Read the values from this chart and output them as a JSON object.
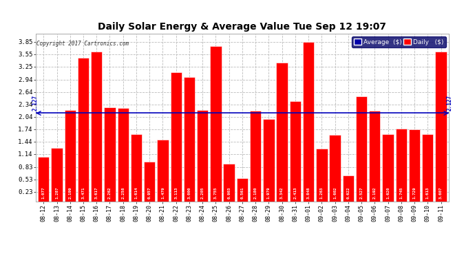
{
  "title": "Daily Solar Energy & Average Value Tue Sep 12 19:07",
  "copyright": "Copyright 2017 Cartronics.com",
  "average_value": 2.127,
  "average_label": "2.127",
  "categories": [
    "08-12",
    "08-13",
    "08-14",
    "08-15",
    "08-16",
    "08-17",
    "08-18",
    "08-19",
    "08-20",
    "08-21",
    "08-22",
    "08-23",
    "08-24",
    "08-25",
    "08-26",
    "08-27",
    "08-28",
    "08-29",
    "08-30",
    "08-31",
    "09-01",
    "09-02",
    "09-03",
    "09-04",
    "09-05",
    "09-06",
    "09-07",
    "09-08",
    "09-09",
    "09-10",
    "09-11"
  ],
  "values": [
    1.077,
    1.287,
    2.199,
    3.471,
    3.617,
    2.262,
    2.258,
    1.614,
    0.957,
    1.479,
    3.113,
    3.0,
    2.205,
    3.755,
    0.903,
    0.561,
    2.18,
    1.979,
    3.342,
    2.413,
    3.848,
    1.263,
    1.602,
    0.622,
    2.527,
    2.192,
    1.62,
    1.745,
    1.729,
    1.613,
    3.607
  ],
  "bar_color": "#ff0000",
  "avg_line_color": "#0000bb",
  "background_color": "#ffffff",
  "plot_bg_color": "#ffffff",
  "grid_color": "#bbbbbb",
  "yticks": [
    0.23,
    0.53,
    0.83,
    1.14,
    1.44,
    1.74,
    2.04,
    2.34,
    2.64,
    2.94,
    3.25,
    3.55,
    3.85
  ],
  "ylim": [
    0.0,
    4.05
  ],
  "legend_avg_color": "#0000aa",
  "legend_daily_color": "#ff0000",
  "legend_avg_text": "Average  ($)",
  "legend_daily_text": "Daily   ($)"
}
